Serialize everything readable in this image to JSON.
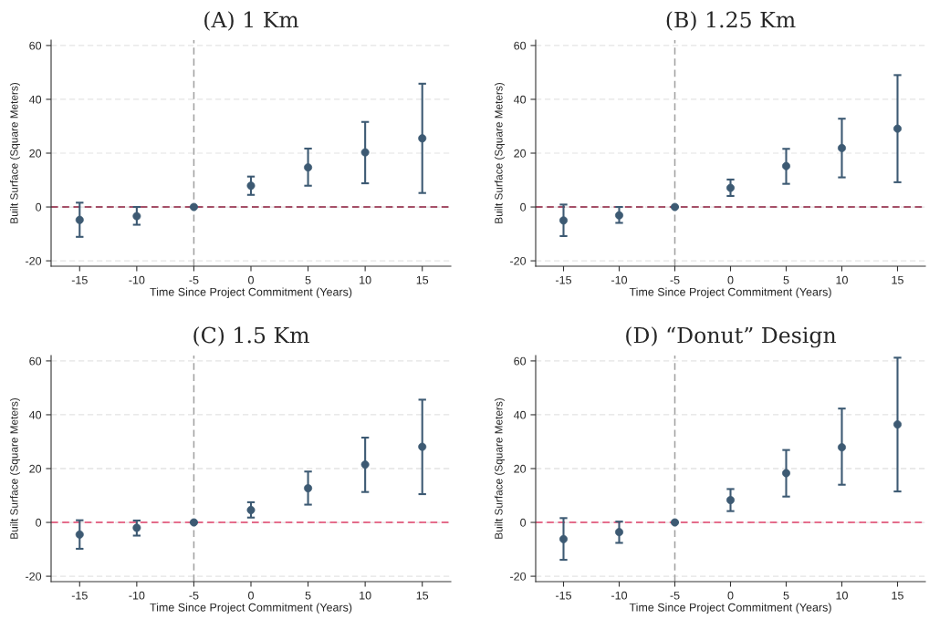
{
  "chart_data": [
    {
      "type": "scatter",
      "title": "(A) 1 Km",
      "xlabel": "Time Since Project Commitment (Years)",
      "ylabel": "Built Surface (Square Meters)",
      "x": [
        -15,
        -10,
        -5,
        0,
        5,
        10,
        15
      ],
      "series": [
        {
          "color": "#3d5a73",
          "values": [
            -4.8,
            -3.4,
            0,
            7.9,
            14.7,
            20.3,
            25.5
          ],
          "errors": [
            [
              -11.1,
              1.6
            ],
            [
              -6.6,
              0
            ],
            null,
            [
              4.5,
              11.3
            ],
            [
              7.9,
              21.7
            ],
            [
              8.8,
              31.6
            ],
            [
              5.2,
              45.8
            ]
          ]
        }
      ],
      "xlim": [
        -17.5,
        17.5
      ],
      "xticks": [
        -15,
        -10,
        -5,
        0,
        5,
        10,
        15
      ],
      "ylim": [
        -22,
        62
      ],
      "yticks": [
        -20,
        0,
        20,
        40,
        60
      ],
      "ref_lines": [
        {
          "axis": "x",
          "value": -5,
          "color": "#a0a0a0",
          "line_style": "dashed"
        },
        {
          "axis": "y",
          "value": 0,
          "color": "#8b1a3a",
          "line_style": "dashed"
        }
      ],
      "grid": "y",
      "marker": "circle",
      "legend": false
    },
    {
      "type": "scatter",
      "title": "(B) 1.25 Km",
      "xlabel": "Time Since Project Commitment (Years)",
      "ylabel": "Built Surface (Square Meters)",
      "x": [
        -15,
        -10,
        -5,
        0,
        5,
        10,
        15
      ],
      "series": [
        {
          "color": "#3d5a73",
          "values": [
            -5.0,
            -3.1,
            0,
            7.1,
            15.2,
            21.9,
            29.1
          ],
          "errors": [
            [
              -10.8,
              0.9
            ],
            [
              -5.9,
              0
            ],
            null,
            [
              4.1,
              10.2
            ],
            [
              8.6,
              21.6
            ],
            [
              11.0,
              32.8
            ],
            [
              9.2,
              49.0
            ]
          ]
        }
      ],
      "xlim": [
        -17.5,
        17.5
      ],
      "xticks": [
        -15,
        -10,
        -5,
        0,
        5,
        10,
        15
      ],
      "ylim": [
        -22,
        62
      ],
      "yticks": [
        -20,
        0,
        20,
        40,
        60
      ],
      "ref_lines": [
        {
          "axis": "x",
          "value": -5,
          "color": "#a0a0a0",
          "line_style": "dashed"
        },
        {
          "axis": "y",
          "value": 0,
          "color": "#8b1a3a",
          "line_style": "dashed"
        }
      ],
      "grid": "y",
      "marker": "circle",
      "legend": false
    },
    {
      "type": "scatter",
      "title": "(C) 1.5 Km",
      "xlabel": "Time Since Project Commitment (Years)",
      "ylabel": "Built Surface (Square Meters)",
      "x": [
        -15,
        -10,
        -5,
        0,
        5,
        10,
        15
      ],
      "series": [
        {
          "color": "#3d5a73",
          "values": [
            -4.5,
            -2.0,
            0,
            4.6,
            12.7,
            21.5,
            28.1
          ],
          "errors": [
            [
              -9.8,
              0.8
            ],
            [
              -4.9,
              0.7
            ],
            null,
            [
              1.8,
              7.5
            ],
            [
              6.6,
              18.9
            ],
            [
              11.3,
              31.5
            ],
            [
              10.5,
              45.6
            ]
          ]
        }
      ],
      "xlim": [
        -17.5,
        17.5
      ],
      "xticks": [
        -15,
        -10,
        -5,
        0,
        5,
        10,
        15
      ],
      "ylim": [
        -22,
        62
      ],
      "yticks": [
        -20,
        0,
        20,
        40,
        60
      ],
      "ref_lines": [
        {
          "axis": "x",
          "value": -5,
          "color": "#a0a0a0",
          "line_style": "dashed"
        },
        {
          "axis": "y",
          "value": 0,
          "color": "#e0406a",
          "line_style": "dashed"
        }
      ],
      "grid": "y",
      "marker": "circle",
      "legend": false
    },
    {
      "type": "scatter",
      "title": "(D) “Donut” Design",
      "xlabel": "Time Since Project Commitment (Years)",
      "ylabel": "Built Surface (Square Meters)",
      "x": [
        -15,
        -10,
        -5,
        0,
        5,
        10,
        15
      ],
      "series": [
        {
          "color": "#3d5a73",
          "values": [
            -6.2,
            -3.6,
            0,
            8.3,
            18.3,
            27.9,
            36.4
          ],
          "errors": [
            [
              -13.9,
              1.6
            ],
            [
              -7.6,
              0.3
            ],
            null,
            [
              4.2,
              12.4
            ],
            [
              9.6,
              26.9
            ],
            [
              14.0,
              42.3
            ],
            [
              11.5,
              61.2
            ]
          ]
        }
      ],
      "xlim": [
        -17.5,
        17.5
      ],
      "xticks": [
        -15,
        -10,
        -5,
        0,
        5,
        10,
        15
      ],
      "ylim": [
        -22,
        62
      ],
      "yticks": [
        -20,
        0,
        20,
        40,
        60
      ],
      "ref_lines": [
        {
          "axis": "x",
          "value": -5,
          "color": "#a0a0a0",
          "line_style": "dashed"
        },
        {
          "axis": "y",
          "value": 0,
          "color": "#e0406a",
          "line_style": "dashed"
        }
      ],
      "grid": "y",
      "marker": "circle",
      "legend": false
    }
  ]
}
